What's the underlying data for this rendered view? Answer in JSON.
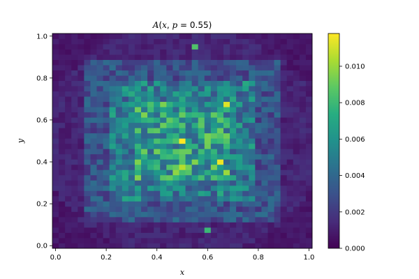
{
  "chart_data": {
    "type": "heatmap",
    "title": "A(x, p = 0.55)",
    "xlabel": "x",
    "ylabel": "y",
    "xlim": [
      -0.0125,
      1.0125
    ],
    "ylim": [
      -0.0125,
      1.0125
    ],
    "xticks": [
      0.0,
      0.2,
      0.4,
      0.6,
      0.8,
      1.0
    ],
    "xtick_labels": [
      "0.0",
      "0.2",
      "0.4",
      "0.6",
      "0.8",
      "1.0"
    ],
    "yticks": [
      0.0,
      0.2,
      0.4,
      0.6,
      0.8,
      1.0
    ],
    "ytick_labels": [
      "0.0",
      "0.2",
      "0.4",
      "0.6",
      "0.8",
      "1.0"
    ],
    "colorbar": {
      "colormap": "viridis",
      "vmin": 0.0,
      "vmax": 0.0118,
      "ticks": [
        0.0,
        0.002,
        0.004,
        0.006,
        0.008,
        0.01
      ],
      "tick_labels": [
        "0.000",
        "0.002",
        "0.004",
        "0.006",
        "0.008",
        "0.010"
      ]
    },
    "grid": false,
    "n_cells_x": 41,
    "n_cells_y": 41,
    "x_start": 0.0,
    "x_step": 0.025,
    "y_start": 0.0,
    "y_step": 0.025,
    "description": "Noisy 41x41 grid; values highest (~0.007-0.012) in central square region x,y in [0.33,0.67] with peaks near (0.5,0.5),(0.5,0.37),(0.67,0.67),(0.67,0.33); medium (~0.004-0.006) in ring around; low (~0-0.002) near borders",
    "peaks": [
      {
        "x": 0.5,
        "y": 0.5,
        "value": 0.0118
      },
      {
        "x": 0.5,
        "y": 0.375,
        "value": 0.0105
      },
      {
        "x": 0.675,
        "y": 0.675,
        "value": 0.0112
      },
      {
        "x": 0.65,
        "y": 0.39,
        "value": 0.0115
      },
      {
        "x": 0.675,
        "y": 0.35,
        "value": 0.01
      },
      {
        "x": 0.475,
        "y": 0.35,
        "value": 0.0098
      },
      {
        "x": 0.55,
        "y": 0.95,
        "value": 0.0085
      },
      {
        "x": 0.6,
        "y": 0.075,
        "value": 0.008
      }
    ],
    "seed": 7
  }
}
